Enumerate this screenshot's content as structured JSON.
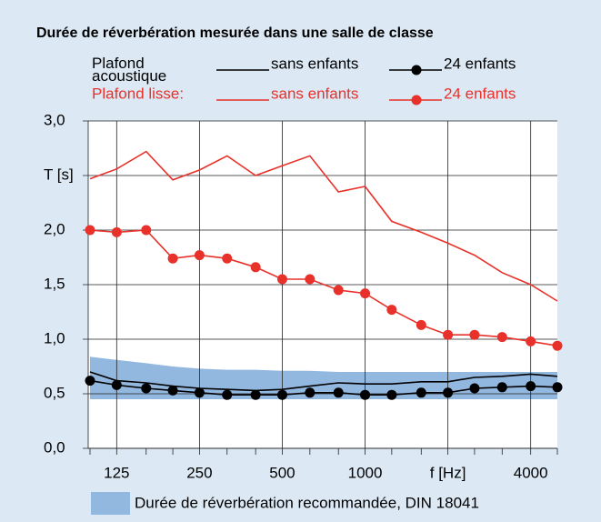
{
  "chart_data": {
    "type": "line",
    "title": "Durée de réverbération mesurée dans une salle de classe",
    "x": [
      100,
      125,
      160,
      200,
      250,
      315,
      400,
      500,
      630,
      800,
      1000,
      1250,
      1600,
      2000,
      2500,
      3150,
      4000,
      5000
    ],
    "xlim": [
      100,
      5000
    ],
    "xscale": "log",
    "xticks": [
      125,
      250,
      500,
      1000,
      {
        "value": 2000,
        "label": "f [Hz]"
      },
      4000
    ],
    "ylim": [
      0,
      3
    ],
    "yticks": [
      {
        "value": 0,
        "label": "0,0"
      },
      {
        "value": 0.5,
        "label": "0,5"
      },
      {
        "value": 1,
        "label": "1,0"
      },
      {
        "value": 1.5,
        "label": "1,5"
      },
      {
        "value": 2,
        "label": "2,0"
      },
      {
        "value": 2.5,
        "label": "T [s]"
      },
      {
        "value": 3,
        "label": "3,0"
      }
    ],
    "grid": true,
    "groups": [
      {
        "label": "Plafond acoustique",
        "color": "#000000"
      },
      {
        "label": "Plafond lisse:",
        "color": "#e8312a"
      }
    ],
    "series": [
      {
        "name": "sans enfants",
        "group": 0,
        "color": "#000000",
        "marker": false,
        "values": [
          0.7,
          0.62,
          0.6,
          0.57,
          0.55,
          0.54,
          0.53,
          0.54,
          0.57,
          0.6,
          0.59,
          0.59,
          0.61,
          0.61,
          0.65,
          0.66,
          0.68,
          0.66
        ]
      },
      {
        "name": "24 enfants",
        "group": 0,
        "color": "#000000",
        "marker": true,
        "values": [
          0.62,
          0.58,
          0.55,
          0.53,
          0.51,
          0.49,
          0.49,
          0.49,
          0.51,
          0.51,
          0.49,
          0.49,
          0.51,
          0.51,
          0.55,
          0.56,
          0.57,
          0.56
        ]
      },
      {
        "name": "sans enfants",
        "group": 1,
        "color": "#e8312a",
        "marker": false,
        "values": [
          2.47,
          2.56,
          2.72,
          2.46,
          2.55,
          2.68,
          2.5,
          2.59,
          2.68,
          2.35,
          2.4,
          2.08,
          1.98,
          1.88,
          1.77,
          1.61,
          1.5,
          1.35
        ]
      },
      {
        "name": "24 enfants",
        "group": 1,
        "color": "#e8312a",
        "marker": true,
        "values": [
          2.0,
          1.98,
          2.0,
          1.74,
          1.77,
          1.74,
          1.66,
          1.55,
          1.55,
          1.45,
          1.42,
          1.27,
          1.13,
          1.04,
          1.04,
          1.02,
          0.98,
          0.94
        ]
      }
    ],
    "band": {
      "name": "Durée de réverbération recommandée, DIN 18041",
      "color": "#93b8e0",
      "upper": [
        0.84,
        0.81,
        0.78,
        0.75,
        0.73,
        0.72,
        0.72,
        0.71,
        0.71,
        0.7,
        0.7,
        0.7,
        0.7,
        0.7,
        0.7,
        0.7,
        0.7,
        0.7
      ],
      "lower": [
        0.45,
        0.45,
        0.45,
        0.45,
        0.45,
        0.45,
        0.45,
        0.45,
        0.45,
        0.45,
        0.45,
        0.45,
        0.45,
        0.45,
        0.45,
        0.45,
        0.45,
        0.45
      ]
    }
  }
}
